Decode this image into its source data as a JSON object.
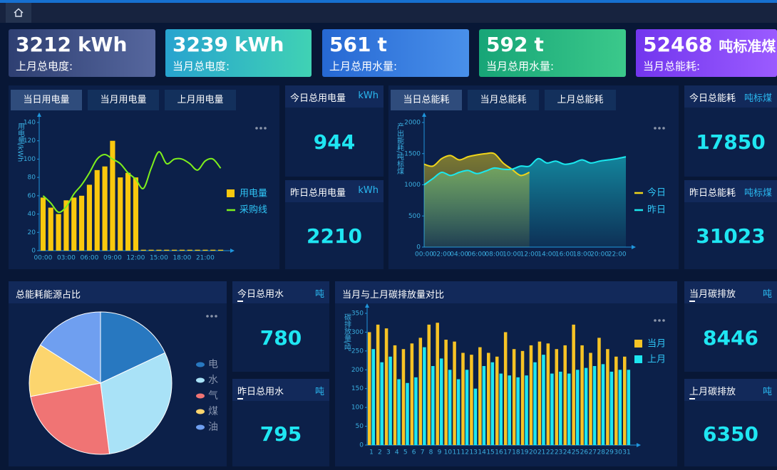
{
  "kpi_cards": [
    {
      "value": 3212,
      "unit": "kWh",
      "label": "上月总电度:"
    },
    {
      "value": 3239,
      "unit": "kWh",
      "label": "当月总电度:"
    },
    {
      "value": 561,
      "unit": "t",
      "label": "上月总用水量:"
    },
    {
      "value": 592,
      "unit": "t",
      "label": "当月总用水量:"
    },
    {
      "value": 52468,
      "unit": "吨标准煤",
      "label": "当月总能耗:"
    }
  ],
  "stat_cards": [
    {
      "title": "今日总用电量",
      "unit": "kWh",
      "value": 944
    },
    {
      "title": "昨日总用电量",
      "unit": "kWh",
      "value": 2210
    },
    {
      "title": "今日总能耗",
      "unit": "吨标煤",
      "value": 17850
    },
    {
      "title": "昨日总能耗",
      "unit": "吨标煤",
      "value": 31023
    },
    {
      "title": "今日总用水",
      "unit": "吨",
      "value": 780
    },
    {
      "title": "昨日总用水",
      "unit": "吨",
      "value": 795
    },
    {
      "title": "当月碳排放",
      "unit": "吨",
      "value": 8446
    },
    {
      "title": "上月碳排放",
      "unit": "吨",
      "value": 6350
    }
  ],
  "chart_data": [
    {
      "type": "bar",
      "tabs": [
        "当日用电量",
        "当月用电量",
        "上月用电量"
      ],
      "y_label": "用电量/kWh",
      "categories": [
        "00:00",
        null,
        null,
        "03:00",
        null,
        null,
        "06:00",
        null,
        null,
        "09:00",
        null,
        null,
        "12:00",
        null,
        null,
        "15:00",
        null,
        null,
        "18:00",
        null,
        null,
        "21:00",
        null,
        null
      ],
      "series": [
        {
          "name": "用电量",
          "type": "bar",
          "color": "#f9c80e",
          "values": [
            58,
            47,
            40,
            55,
            58,
            60,
            72,
            88,
            92,
            120,
            80,
            85,
            80,
            1,
            1,
            1,
            1,
            1,
            1,
            1,
            1,
            1,
            1,
            1
          ]
        },
        {
          "name": "采购线",
          "type": "line",
          "color": "#7ef01c",
          "values": [
            60,
            52,
            42,
            48,
            62,
            72,
            85,
            100,
            105,
            100,
            95,
            85,
            78,
            68,
            90,
            108,
            95,
            100,
            100,
            95,
            88,
            98,
            100,
            90
          ]
        }
      ],
      "ylim": [
        0,
        140
      ],
      "yticks": [
        0,
        20,
        40,
        60,
        80,
        100,
        120,
        140
      ],
      "legend": "right"
    },
    {
      "type": "line",
      "tabs": [
        "当日总能耗",
        "当月总能耗",
        "上月总能耗"
      ],
      "y_label": "产出能耗/吨标煤",
      "area": true,
      "categories": [
        "00:00",
        null,
        "02:00",
        null,
        "04:00",
        null,
        "06:00",
        null,
        "08:00",
        null,
        "10:00",
        null,
        "12:00",
        null,
        "14:00",
        null,
        "16:00",
        null,
        "18:00",
        null,
        "20:00",
        null,
        "22:00",
        null
      ],
      "series": [
        {
          "name": "今日",
          "color": "#f0d51a",
          "values": [
            1330,
            1300,
            1420,
            1470,
            1400,
            1450,
            1480,
            1500,
            1500,
            1350,
            1250,
            1150,
            1200,
            null,
            null,
            null,
            null,
            null,
            null,
            null,
            null,
            null,
            null,
            null
          ]
        },
        {
          "name": "昨日",
          "color": "#1ae8ee",
          "values": [
            1000,
            1100,
            1200,
            1150,
            1200,
            1230,
            1180,
            1220,
            1270,
            1250,
            1250,
            1300,
            1300,
            1420,
            1350,
            1380,
            1330,
            1350,
            1400,
            1350,
            1380,
            1400,
            1420,
            1450
          ]
        }
      ],
      "ylim": [
        0,
        2000
      ],
      "yticks": [
        0,
        500,
        1000,
        1500,
        2000
      ],
      "legend": "right"
    },
    {
      "type": "pie",
      "title": "总能耗能源占比",
      "categories": [
        "电",
        "水",
        "气",
        "煤",
        "油"
      ],
      "values": [
        18,
        30,
        24,
        12,
        16
      ],
      "colors": [
        "#2878c0",
        "#a9e2f7",
        "#f07474",
        "#fcd56e",
        "#6f9ff0"
      ],
      "legend": "right"
    },
    {
      "type": "bar",
      "title": "当月与上月碳排放量对比",
      "y_label": "碳排放量/吨",
      "categories": [
        "1",
        "2",
        "3",
        "4",
        "5",
        "6",
        "7",
        "8",
        "9",
        "10",
        "11",
        "12",
        "13",
        "14",
        "15",
        "16",
        "17",
        "18",
        "19",
        "20",
        "21",
        "22",
        "23",
        "24",
        "25",
        "26",
        "27",
        "28",
        "29",
        "30",
        "31"
      ],
      "series": [
        {
          "name": "当月",
          "type": "bar",
          "color": "#f7c325",
          "values": [
            300,
            320,
            310,
            265,
            255,
            270,
            285,
            320,
            325,
            280,
            275,
            245,
            240,
            260,
            245,
            235,
            300,
            255,
            250,
            265,
            275,
            270,
            255,
            265,
            320,
            265,
            245,
            285,
            255,
            235,
            235
          ]
        },
        {
          "name": "上月",
          "type": "bar",
          "color": "#1de6f0",
          "values": [
            255,
            220,
            235,
            175,
            165,
            180,
            260,
            210,
            230,
            200,
            175,
            200,
            150,
            210,
            220,
            190,
            185,
            180,
            185,
            220,
            240,
            190,
            195,
            190,
            200,
            205,
            210,
            215,
            195,
            200,
            200
          ]
        }
      ],
      "ylim": [
        0,
        350
      ],
      "yticks": [
        0,
        50,
        100,
        150,
        200,
        250,
        300,
        350
      ],
      "legend": "right"
    }
  ]
}
